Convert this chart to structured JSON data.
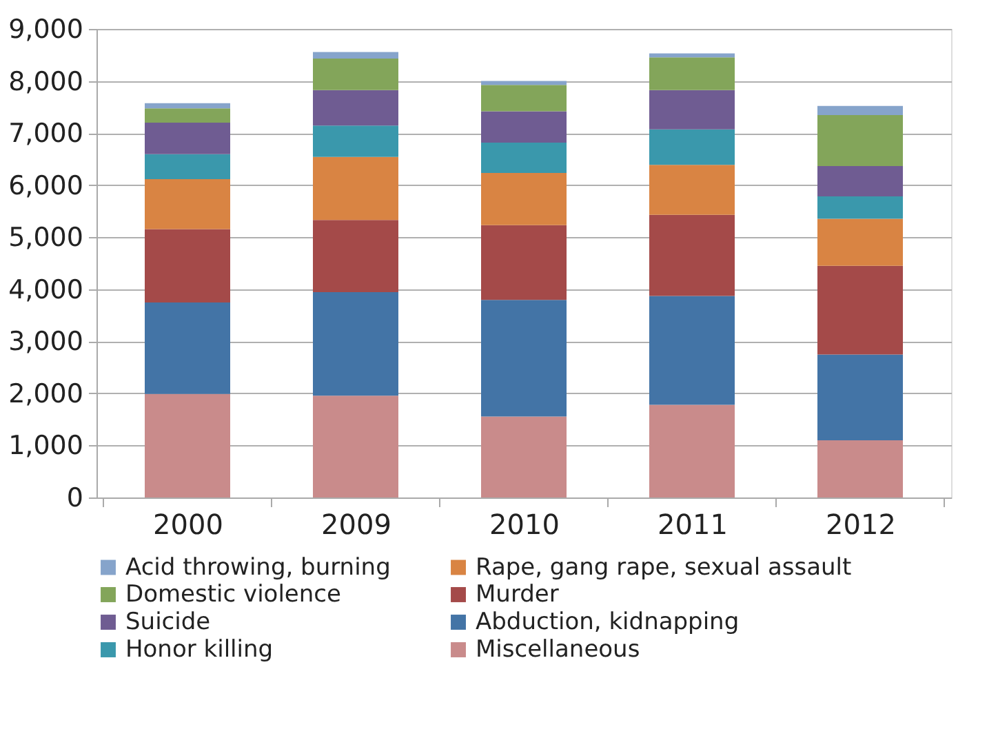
{
  "chart_data": {
    "type": "bar",
    "stacked": true,
    "categories": [
      "2000",
      "2009",
      "2010",
      "2011",
      "2012"
    ],
    "series": [
      {
        "name": "Miscellaneous",
        "color": "#c98b8b",
        "values": [
          1990,
          1955,
          1555,
          1780,
          1100
        ]
      },
      {
        "name": "Abduction, kidnapping",
        "color": "#4374a6",
        "values": [
          1755,
          1990,
          2240,
          2090,
          1645
        ]
      },
      {
        "name": "Murder",
        "color": "#a44a49",
        "values": [
          1410,
          1385,
          1435,
          1560,
          1705
        ]
      },
      {
        "name": "Rape, gang rape, sexual assault",
        "color": "#d98443",
        "values": [
          960,
          1210,
          1005,
          960,
          905
        ]
      },
      {
        "name": "Honor killing",
        "color": "#3a98ac",
        "values": [
          480,
          605,
          580,
          680,
          430
        ]
      },
      {
        "name": "Suicide",
        "color": "#6f5c92",
        "values": [
          605,
          680,
          605,
          755,
          580
        ]
      },
      {
        "name": "Domestic violence",
        "color": "#83a55a",
        "values": [
          275,
          605,
          505,
          630,
          980
        ]
      },
      {
        "name": "Acid throwing, burning",
        "color": "#86a4cb",
        "values": [
          100,
          125,
          75,
          75,
          175
        ]
      }
    ],
    "ylim": [
      0,
      9000
    ],
    "yticks": [
      {
        "value": 0,
        "label": "0"
      },
      {
        "value": 1000,
        "label": "1,000"
      },
      {
        "value": 2000,
        "label": "2,000"
      },
      {
        "value": 3000,
        "label": "3,000"
      },
      {
        "value": 4000,
        "label": "4,000"
      },
      {
        "value": 5000,
        "label": "5,000"
      },
      {
        "value": 6000,
        "label": "6,000"
      },
      {
        "value": 7000,
        "label": "7,000"
      },
      {
        "value": 8000,
        "label": "8,000"
      },
      {
        "value": 9000,
        "label": "9,000"
      }
    ],
    "grid": "y",
    "legend": "bottom"
  }
}
